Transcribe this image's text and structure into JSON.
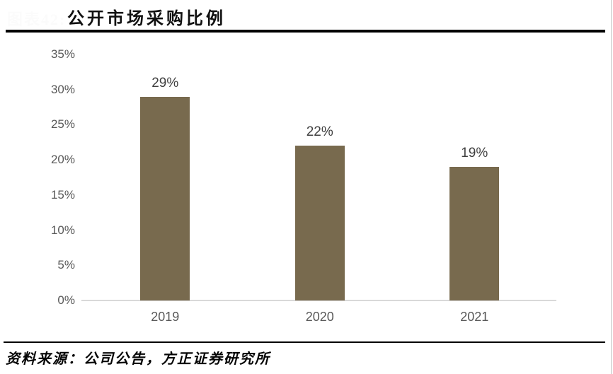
{
  "header": {
    "figure_label": "图表42:",
    "title": "公开市场采购比例"
  },
  "chart_data": {
    "type": "bar",
    "title": "公开市场采购比例",
    "categories": [
      "2019",
      "2020",
      "2021"
    ],
    "values": [
      29,
      22,
      19
    ],
    "value_labels": [
      "29%",
      "22%",
      "19%"
    ],
    "xlabel": "",
    "ylabel": "",
    "ylim": [
      0,
      35
    ],
    "yticks": [
      {
        "value": 35,
        "label": "35%"
      },
      {
        "value": 30,
        "label": "30%"
      },
      {
        "value": 25,
        "label": "25%"
      },
      {
        "value": 20,
        "label": "20%"
      },
      {
        "value": 15,
        "label": "15%"
      },
      {
        "value": 10,
        "label": "10%"
      },
      {
        "value": 5,
        "label": "5%"
      },
      {
        "value": 0,
        "label": "0%"
      }
    ],
    "grid": false,
    "legend": false
  },
  "footer": {
    "source": "资料来源：公司公告，方正证券研究所"
  },
  "colors": {
    "bar": "#786a4e",
    "axis_text": "#595959",
    "data_label": "#404040",
    "axis_line": "#d9d9d9",
    "rule": "#000000",
    "faint_label": "#fbfbfb",
    "page_edge": "#c8c8c8"
  }
}
